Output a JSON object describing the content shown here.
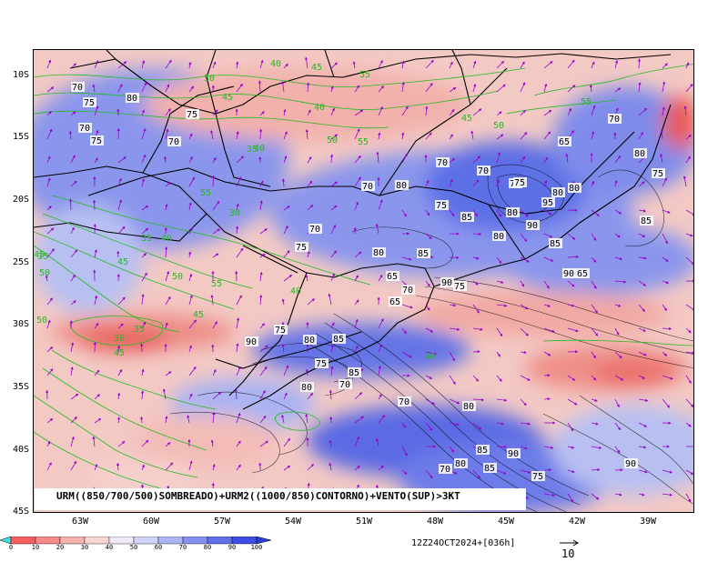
{
  "map": {
    "lat_labels": [
      "10S",
      "15S",
      "20S",
      "25S",
      "30S",
      "35S",
      "40S",
      "45S"
    ],
    "lon_labels": [
      "63W",
      "60W",
      "57W",
      "54W",
      "51W",
      "48W",
      "45W",
      "42W",
      "39W"
    ],
    "colors": {
      "land_line": "#000000",
      "black_contour": "#000000",
      "green_contour": "#22bb22",
      "wind_vector": "#9900cc",
      "shade_low": "#f08080",
      "shade_mid": "#f5d5d0",
      "shade_high": "#4a5ee0"
    },
    "green_contour_labels": [
      "40",
      "45",
      "50",
      "55",
      "40",
      "45",
      "50",
      "55",
      "35",
      "40",
      "45",
      "50",
      "55",
      "30",
      "35",
      "40",
      "45",
      "50",
      "55",
      "40",
      "45",
      "50",
      "35",
      "30",
      "45",
      "35",
      "40",
      "45",
      "50",
      "55"
    ],
    "black_contour_labels": [
      "70",
      "75",
      "80",
      "75",
      "70",
      "75",
      "70",
      "65",
      "70",
      "80",
      "75",
      "70",
      "75",
      "80",
      "70",
      "75",
      "80",
      "70",
      "75",
      "80",
      "85",
      "90",
      "65",
      "70",
      "75",
      "80",
      "85",
      "90",
      "95",
      "80",
      "85",
      "90",
      "65",
      "70",
      "75",
      "80",
      "85",
      "90",
      "75",
      "80",
      "85",
      "70",
      "65",
      "80",
      "85",
      "75",
      "70",
      "80",
      "85",
      "90",
      "75",
      "70",
      "80",
      "85",
      "90"
    ]
  },
  "caption": "URM((850/700/500)SOMBREADO)+URM2((1000/850)CONTORNO)+VENTO(SUP)>3KT",
  "colorbar": {
    "ticks": [
      "0",
      "10",
      "20",
      "30",
      "40",
      "50",
      "60",
      "70",
      "80",
      "90",
      "100"
    ],
    "colors": [
      "#f03c3c",
      "#f46060",
      "#f68a88",
      "#f6b3ae",
      "#f7d6d2",
      "#f0eaf7",
      "#d0d5f8",
      "#aab3f3",
      "#8590ee",
      "#6070e8",
      "#3c4ee2"
    ]
  },
  "timestamp": "12Z24OCT2024+[036h]",
  "ref_vector_label": "10"
}
